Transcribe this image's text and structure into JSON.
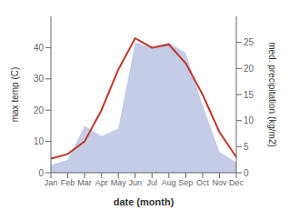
{
  "chart_data": {
    "type": "line",
    "categories": [
      "Jan",
      "Feb",
      "Mar",
      "Apr",
      "May",
      "Jun",
      "Jul",
      "Aug",
      "Sep",
      "Oct",
      "Nov",
      "Dec"
    ],
    "xlabel": "date (month)",
    "ylabel": "max temp (C)",
    "y2label": "med. precipitation (kg/m2)",
    "series": [
      {
        "type": "area",
        "axis": "y2",
        "color": "#c5cce8",
        "values": [
          1.5,
          2.5,
          9.0,
          7.0,
          8.5,
          25.0,
          24.0,
          25.0,
          23.0,
          13.0,
          4.0,
          2.0
        ]
      },
      {
        "type": "line",
        "color": "#c0392b",
        "values": [
          4.5,
          6.0,
          10.0,
          20.0,
          33.0,
          43.0,
          40.0,
          41.0,
          35.0,
          25.0,
          13.0,
          5.0
        ]
      }
    ],
    "ylim": [
      0,
      50
    ],
    "yticks": [
      0,
      10,
      20,
      30,
      40
    ],
    "y2lim": [
      0,
      30
    ],
    "y2ticks": [
      0,
      5,
      10,
      15,
      20,
      25
    ],
    "grid": false
  }
}
